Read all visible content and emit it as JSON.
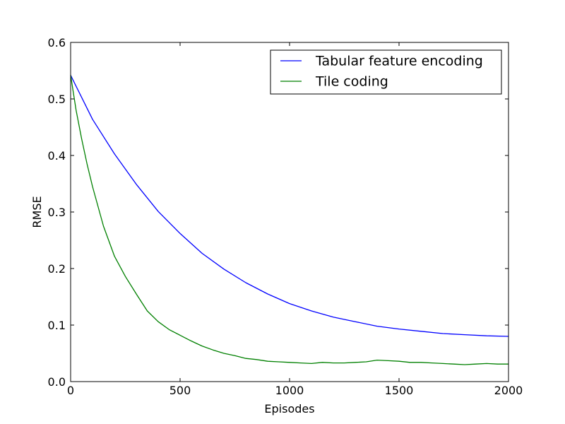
{
  "chart_data": {
    "type": "line",
    "title": "",
    "xlabel": "Episodes",
    "ylabel": "RMSE",
    "xlim": [
      0,
      2000
    ],
    "ylim": [
      0.0,
      0.6
    ],
    "xticks": [
      0,
      500,
      1000,
      1500,
      2000
    ],
    "yticks": [
      0.0,
      0.1,
      0.2,
      0.3,
      0.4,
      0.5,
      0.6
    ],
    "xtick_labels": [
      "0",
      "500",
      "1000",
      "1500",
      "2000"
    ],
    "ytick_labels": [
      "0.0",
      "0.1",
      "0.2",
      "0.3",
      "0.4",
      "0.5",
      "0.6"
    ],
    "grid": false,
    "legend_position": "top-right",
    "series": [
      {
        "name": "Tabular feature encoding",
        "color": "#0000ff",
        "x": [
          0,
          100,
          200,
          300,
          400,
          500,
          600,
          700,
          800,
          900,
          1000,
          1100,
          1200,
          1300,
          1400,
          1500,
          1600,
          1700,
          1800,
          1900,
          2000
        ],
        "y": [
          0.542,
          0.464,
          0.403,
          0.349,
          0.301,
          0.262,
          0.227,
          0.199,
          0.175,
          0.155,
          0.138,
          0.125,
          0.114,
          0.106,
          0.098,
          0.093,
          0.089,
          0.085,
          0.083,
          0.081,
          0.08
        ]
      },
      {
        "name": "Tile coding",
        "color": "#008000",
        "x": [
          0,
          25,
          50,
          75,
          100,
          150,
          200,
          250,
          300,
          350,
          400,
          450,
          500,
          550,
          600,
          650,
          700,
          750,
          800,
          850,
          900,
          950,
          1000,
          1050,
          1100,
          1150,
          1200,
          1250,
          1300,
          1350,
          1400,
          1450,
          1500,
          1550,
          1600,
          1650,
          1700,
          1750,
          1800,
          1850,
          1900,
          1950,
          2000
        ],
        "y": [
          0.542,
          0.48,
          0.43,
          0.385,
          0.345,
          0.275,
          0.222,
          0.186,
          0.155,
          0.125,
          0.106,
          0.092,
          0.082,
          0.072,
          0.063,
          0.056,
          0.05,
          0.046,
          0.041,
          0.039,
          0.036,
          0.035,
          0.034,
          0.033,
          0.032,
          0.034,
          0.033,
          0.033,
          0.034,
          0.035,
          0.038,
          0.037,
          0.036,
          0.034,
          0.034,
          0.033,
          0.032,
          0.031,
          0.03,
          0.031,
          0.032,
          0.031,
          0.031
        ]
      }
    ]
  }
}
